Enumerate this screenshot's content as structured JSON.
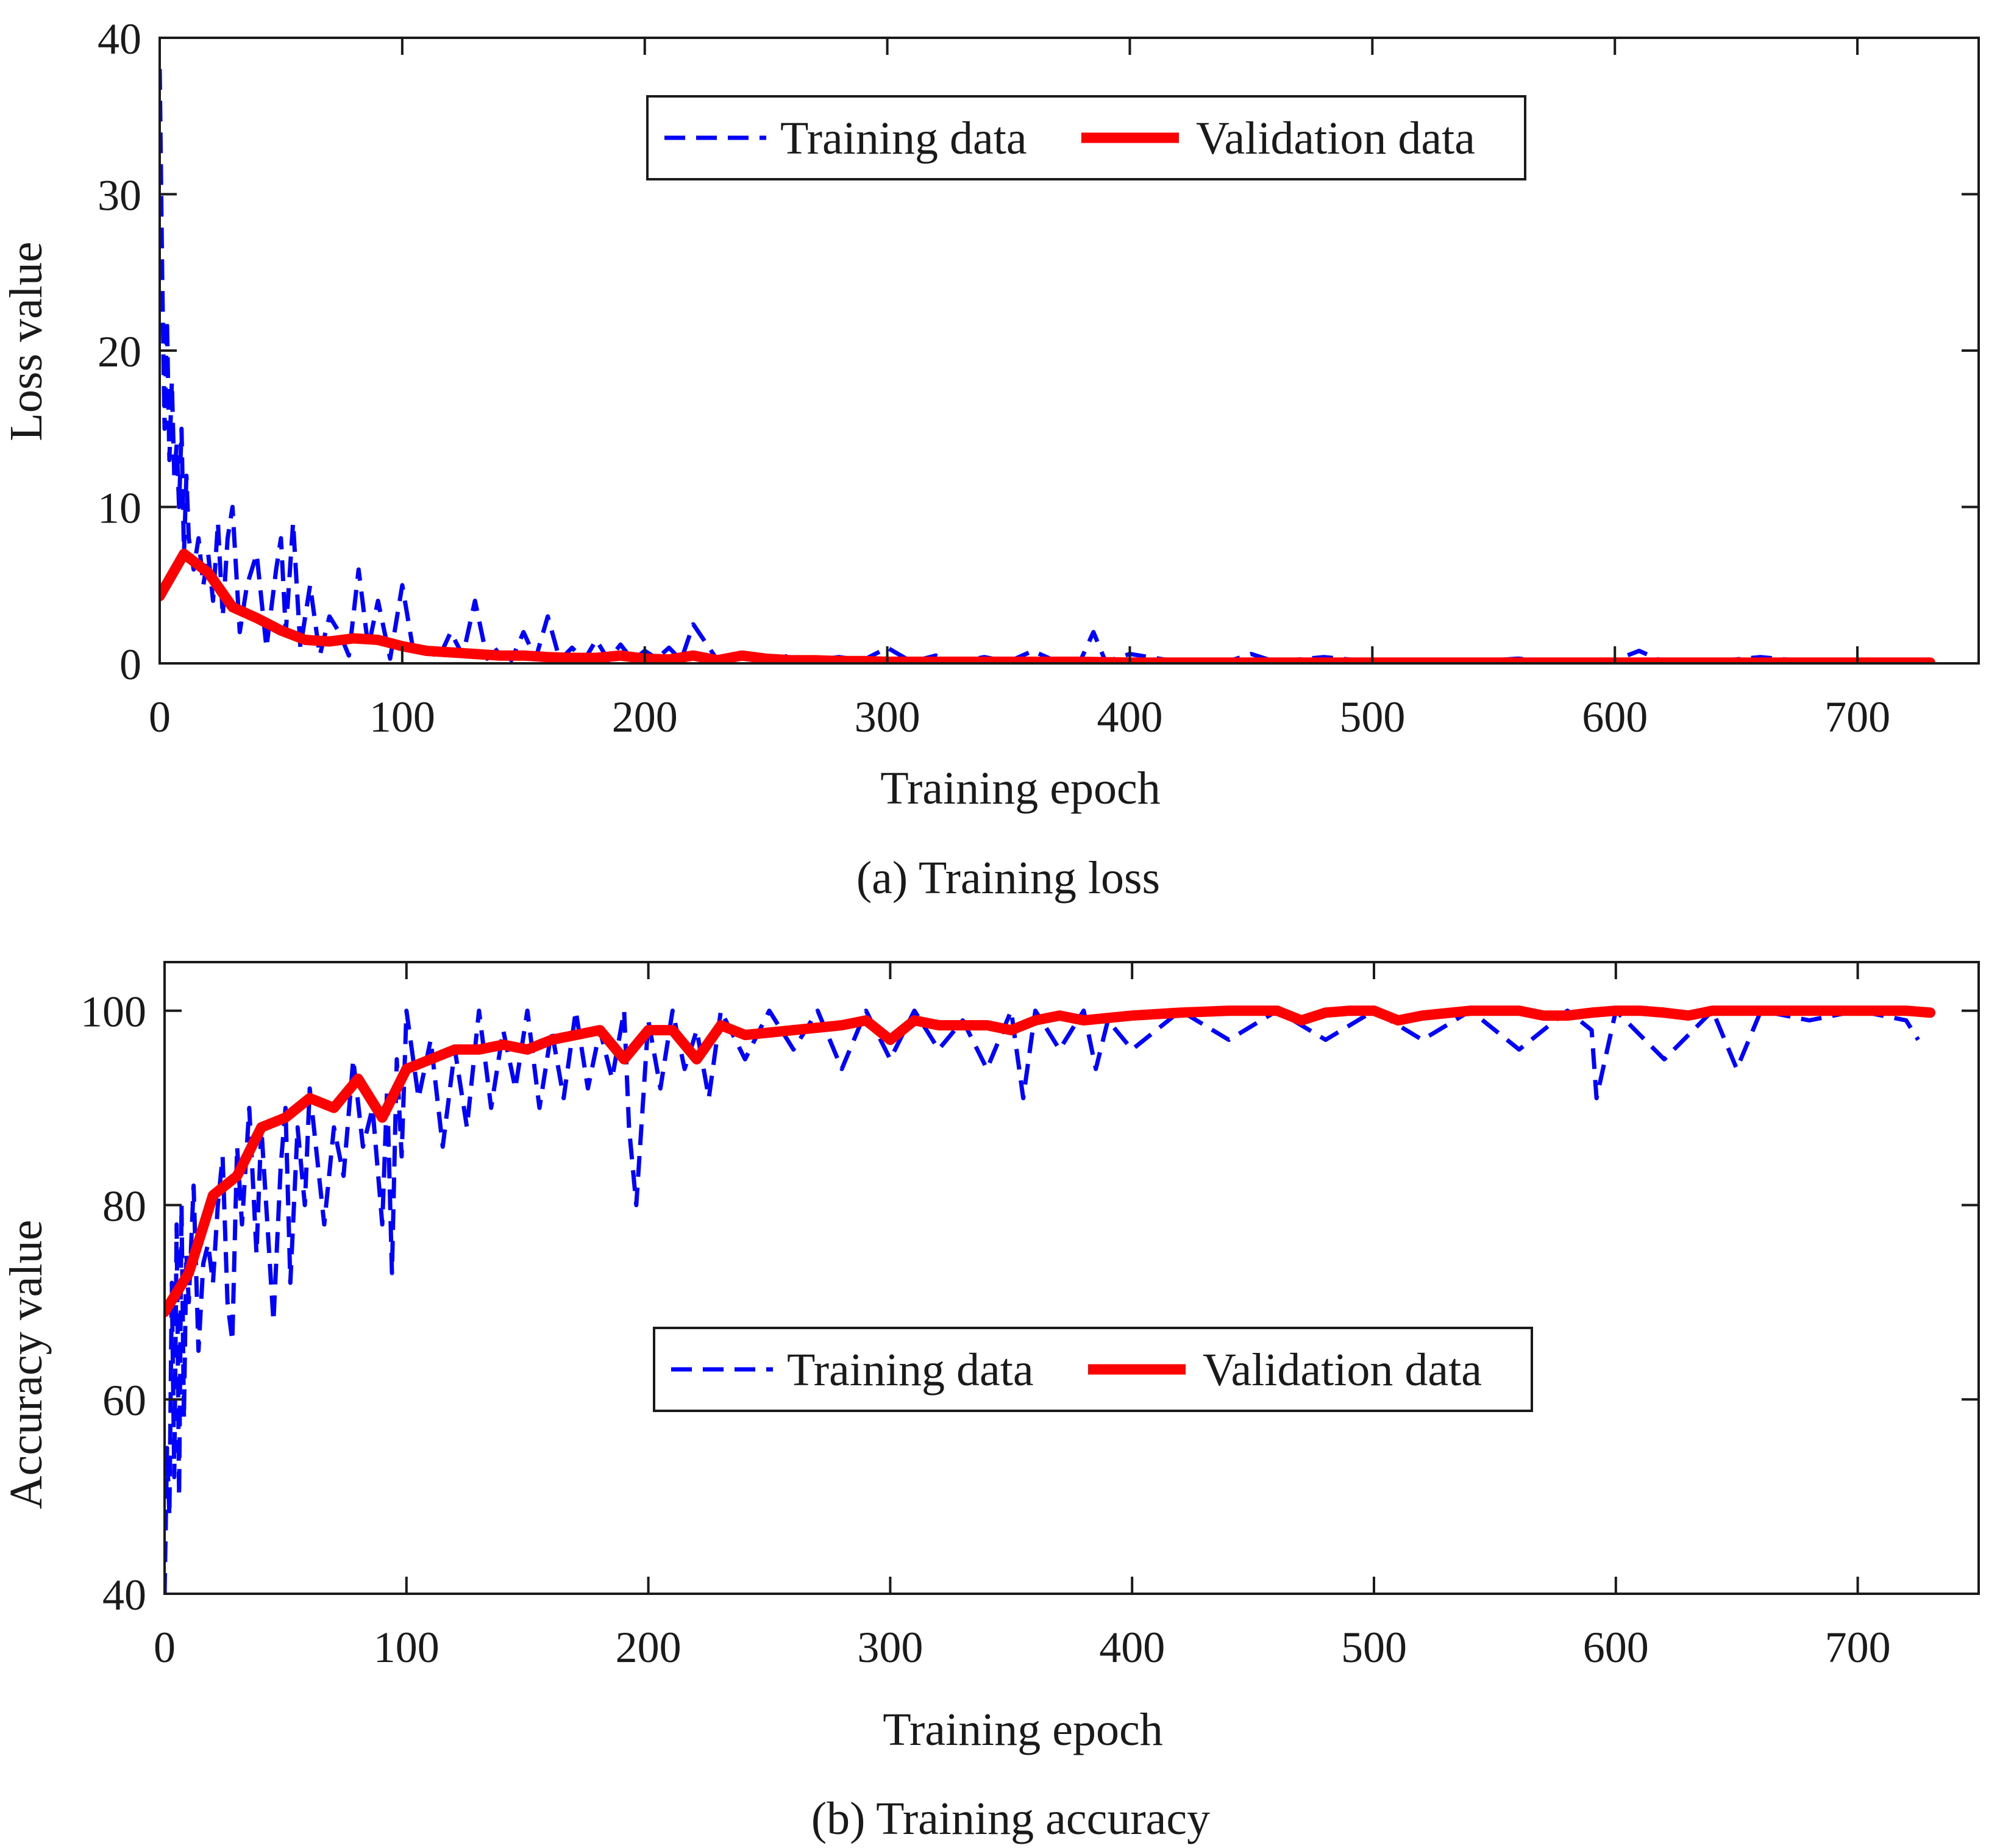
{
  "chart_data": [
    {
      "type": "line",
      "caption": "(a) Training loss",
      "xlabel": "Training epoch",
      "ylabel": "Loss value",
      "xlim": [
        0,
        750
      ],
      "ylim": [
        0,
        40
      ],
      "xticks": [
        0,
        100,
        200,
        300,
        400,
        500,
        600,
        700
      ],
      "yticks": [
        0,
        10,
        20,
        30,
        40
      ],
      "legend": {
        "position": "top-center",
        "entries": [
          "Training data",
          "Validation data"
        ]
      },
      "series": [
        {
          "name": "Training data",
          "style": "dashed",
          "color": "#0000ff",
          "x": [
            0,
            1,
            2,
            3,
            4,
            5,
            6,
            7,
            8,
            9,
            10,
            11,
            12,
            14,
            16,
            18,
            20,
            22,
            24,
            26,
            28,
            30,
            33,
            36,
            40,
            44,
            48,
            50,
            52,
            55,
            58,
            62,
            66,
            70,
            74,
            78,
            82,
            86,
            90,
            95,
            100,
            105,
            110,
            115,
            120,
            125,
            130,
            135,
            140,
            145,
            150,
            155,
            160,
            165,
            170,
            175,
            180,
            185,
            190,
            195,
            200,
            205,
            210,
            215,
            220,
            230,
            240,
            250,
            260,
            270,
            280,
            290,
            300,
            310,
            320,
            330,
            340,
            350,
            360,
            370,
            380,
            385,
            390,
            400,
            420,
            440,
            450,
            460,
            480,
            500,
            520,
            540,
            560,
            580,
            600,
            610,
            620,
            640,
            660,
            680,
            700,
            720,
            730
          ],
          "values": [
            38,
            25,
            15,
            22,
            13,
            18,
            12,
            14,
            10,
            15,
            7,
            12,
            8,
            6,
            8,
            5,
            7,
            4,
            9,
            3,
            8,
            10,
            2,
            5,
            7,
            1,
            6,
            8,
            2,
            9,
            1,
            5,
            0.5,
            3,
            2,
            0.5,
            6,
            1,
            4,
            0.3,
            5,
            0.4,
            1,
            0.3,
            2,
            0.5,
            4,
            0.3,
            1,
            0.2,
            2,
            0.3,
            3,
            0.2,
            1,
            0.2,
            1.5,
            0.2,
            1.2,
            0.2,
            0.8,
            0.3,
            1,
            0.2,
            2.5,
            0.2,
            0.6,
            0.2,
            0.5,
            0.2,
            0.4,
            0.2,
            1,
            0.1,
            0.5,
            0.1,
            0.4,
            0.1,
            0.8,
            0.1,
            0.3,
            2,
            0.1,
            0.6,
            0.1,
            0.1,
            0.6,
            0.1,
            0.4,
            0.1,
            0.2,
            0.1,
            0.3,
            0.1,
            0.2,
            0.8,
            0.1,
            0.1,
            0.4,
            0.1,
            0.1,
            0.1,
            0.1
          ]
        },
        {
          "name": "Validation data",
          "style": "solid",
          "color": "#ff0000",
          "x": [
            0,
            10,
            20,
            30,
            40,
            50,
            60,
            70,
            80,
            90,
            100,
            110,
            120,
            130,
            140,
            150,
            160,
            170,
            180,
            190,
            200,
            210,
            220,
            230,
            240,
            250,
            260,
            270,
            280,
            290,
            300,
            320,
            340,
            360,
            380,
            400,
            450,
            500,
            550,
            600,
            650,
            700,
            730
          ],
          "values": [
            4.3,
            7.0,
            5.8,
            3.6,
            2.9,
            2.1,
            1.5,
            1.4,
            1.6,
            1.5,
            1.1,
            0.8,
            0.7,
            0.6,
            0.5,
            0.5,
            0.4,
            0.35,
            0.35,
            0.5,
            0.3,
            0.25,
            0.5,
            0.2,
            0.5,
            0.3,
            0.2,
            0.2,
            0.15,
            0.15,
            0.1,
            0.1,
            0.1,
            0.1,
            0.1,
            0.05,
            0.05,
            0.05,
            0.05,
            0.05,
            0.05,
            0.05,
            0.05
          ]
        }
      ]
    },
    {
      "type": "line",
      "caption": "(b) Training accuracy",
      "xlabel": "Training epoch",
      "ylabel": "Accuracy value",
      "xlim": [
        0,
        750
      ],
      "ylim": [
        40,
        105
      ],
      "xticks": [
        0,
        100,
        200,
        300,
        400,
        500,
        600,
        700
      ],
      "yticks": [
        40,
        60,
        80,
        100
      ],
      "legend": {
        "position": "center",
        "entries": [
          "Training data",
          "Validation data"
        ]
      },
      "series": [
        {
          "name": "Training data",
          "style": "dashed",
          "color": "#0000ff",
          "x": [
            0,
            1,
            2,
            3,
            4,
            5,
            6,
            7,
            8,
            9,
            10,
            12,
            14,
            16,
            18,
            20,
            22,
            24,
            26,
            28,
            30,
            32,
            35,
            38,
            40,
            42,
            45,
            48,
            50,
            52,
            55,
            58,
            60,
            63,
            66,
            70,
            74,
            78,
            82,
            86,
            90,
            92,
            94,
            96,
            98,
            100,
            105,
            110,
            115,
            120,
            125,
            130,
            135,
            140,
            145,
            150,
            155,
            160,
            165,
            170,
            175,
            180,
            185,
            190,
            192,
            195,
            200,
            205,
            210,
            215,
            220,
            225,
            230,
            240,
            250,
            260,
            270,
            280,
            290,
            300,
            310,
            320,
            330,
            340,
            350,
            355,
            360,
            370,
            380,
            385,
            390,
            400,
            420,
            440,
            460,
            480,
            500,
            520,
            540,
            560,
            580,
            590,
            592,
            600,
            620,
            640,
            650,
            660,
            680,
            700,
            720,
            725
          ],
          "values": [
            40,
            55,
            48,
            72,
            52,
            78,
            50,
            80,
            58,
            75,
            70,
            82,
            65,
            74,
            76,
            72,
            80,
            85,
            70,
            66,
            86,
            78,
            90,
            75,
            88,
            80,
            68,
            84,
            90,
            72,
            88,
            80,
            92,
            85,
            78,
            88,
            83,
            95,
            86,
            90,
            78,
            92,
            73,
            95,
            85,
            100,
            91,
            97,
            86,
            96,
            88,
            100,
            90,
            98,
            92,
            100,
            90,
            98,
            91,
            100,
            92,
            98,
            93,
            100,
            88,
            80,
            99,
            92,
            100,
            94,
            98,
            91,
            100,
            95,
            100,
            96,
            100,
            94,
            100,
            95,
            100,
            96,
            99,
            94,
            100,
            91,
            100,
            96,
            100,
            94,
            99,
            96,
            100,
            97,
            100,
            97,
            100,
            97,
            100,
            96,
            100,
            98,
            91,
            100,
            95,
            100,
            94,
            100,
            99,
            100,
            99,
            97
          ]
        },
        {
          "name": "Validation data",
          "style": "solid",
          "color": "#ff0000",
          "x": [
            0,
            10,
            20,
            30,
            40,
            50,
            60,
            70,
            80,
            90,
            100,
            110,
            120,
            130,
            140,
            150,
            160,
            170,
            180,
            190,
            200,
            210,
            220,
            230,
            240,
            260,
            280,
            290,
            300,
            310,
            320,
            340,
            350,
            360,
            370,
            380,
            400,
            420,
            440,
            460,
            470,
            480,
            490,
            500,
            510,
            520,
            540,
            560,
            570,
            580,
            590,
            600,
            610,
            620,
            630,
            640,
            660,
            680,
            700,
            720,
            730
          ],
          "values": [
            69,
            73,
            81,
            83,
            88,
            89,
            91,
            90,
            93,
            89,
            94,
            95,
            96,
            96,
            96.5,
            96,
            97,
            97.5,
            98,
            95,
            98,
            98,
            95,
            98.5,
            97.5,
            98,
            98.5,
            99,
            97,
            99,
            98.5,
            98.5,
            98,
            99,
            99.5,
            99,
            99.5,
            99.8,
            100,
            100,
            99,
            99.8,
            100,
            100,
            99,
            99.5,
            100,
            100,
            99.5,
            99.5,
            99.8,
            100,
            100,
            99.8,
            99.5,
            100,
            100,
            100,
            100,
            100,
            99.8
          ]
        }
      ]
    }
  ]
}
